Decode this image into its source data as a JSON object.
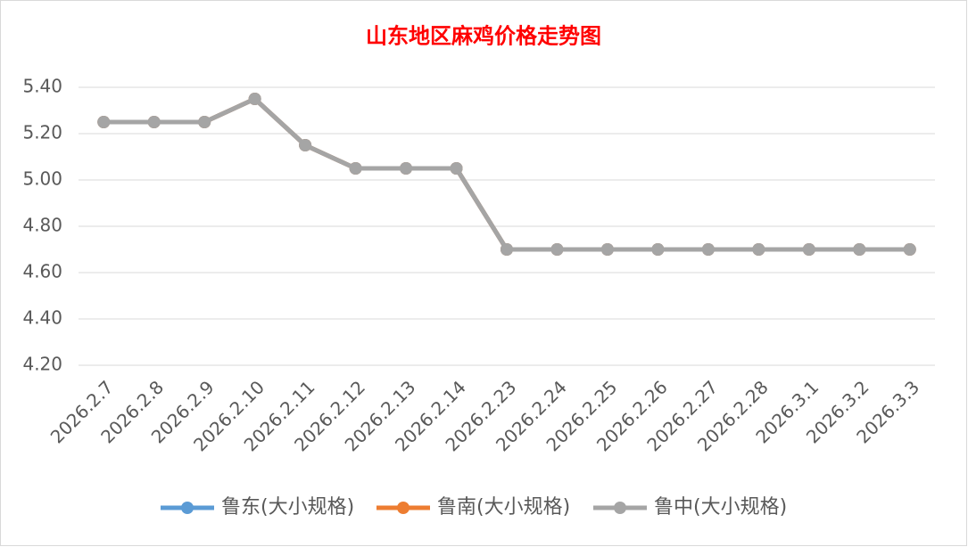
{
  "chart_data": {
    "type": "line",
    "title": "山东地区麻鸡价格走势图",
    "categories": [
      "2026.2.7",
      "2026.2.8",
      "2026.2.9",
      "2026.2.10",
      "2026.2.11",
      "2026.2.12",
      "2026.2.13",
      "2026.2.14",
      "2026.2.23",
      "2026.2.24",
      "2026.2.25",
      "2026.2.26",
      "2026.2.27",
      "2026.2.28",
      "2026.3.1",
      "2026.3.2",
      "2026.3.3"
    ],
    "series": [
      {
        "name": "鲁东(大小规格)",
        "color": "#5b9bd5",
        "values": [
          5.25,
          5.25,
          5.25,
          5.35,
          5.15,
          5.05,
          5.05,
          5.05,
          4.7,
          4.7,
          4.7,
          4.7,
          4.7,
          4.7,
          4.7,
          4.7,
          4.7
        ]
      },
      {
        "name": "鲁南(大小规格)",
        "color": "#ed7d31",
        "values": [
          5.25,
          5.25,
          5.25,
          5.35,
          5.15,
          5.05,
          5.05,
          5.05,
          4.7,
          4.7,
          4.7,
          4.7,
          4.7,
          4.7,
          4.7,
          4.7,
          4.7
        ]
      },
      {
        "name": "鲁中(大小规格)",
        "color": "#a5a5a5",
        "values": [
          5.25,
          5.25,
          5.25,
          5.35,
          5.15,
          5.05,
          5.05,
          5.05,
          4.7,
          4.7,
          4.7,
          4.7,
          4.7,
          4.7,
          4.7,
          4.7,
          4.7
        ]
      }
    ],
    "ylim": [
      4.2,
      5.4
    ],
    "yticks": [
      {
        "value": 4.2,
        "label": "4.20"
      },
      {
        "value": 4.4,
        "label": "4.40"
      },
      {
        "value": 4.6,
        "label": "4.60"
      },
      {
        "value": 4.8,
        "label": "4.80"
      },
      {
        "value": 5.0,
        "label": "5.00"
      },
      {
        "value": 5.2,
        "label": "5.20"
      },
      {
        "value": 5.4,
        "label": "5.40"
      }
    ],
    "grid": true,
    "legend": "bottom"
  }
}
